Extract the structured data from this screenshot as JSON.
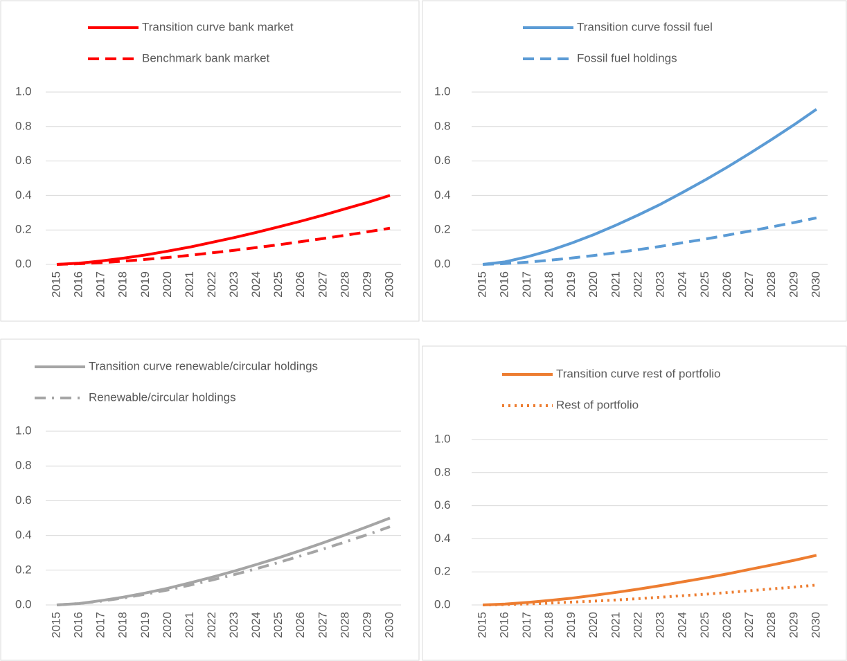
{
  "chart_data": [
    {
      "type": "line",
      "categories": [
        "2015",
        "2016",
        "2017",
        "2018",
        "2019",
        "2020",
        "2021",
        "2022",
        "2023",
        "2024",
        "2025",
        "2026",
        "2027",
        "2028",
        "2029",
        "2030"
      ],
      "series": [
        {
          "name": "Transition curve bank market",
          "color": "#ff0000",
          "style": "solid",
          "values": [
            0,
            0.007,
            0.02,
            0.036,
            0.055,
            0.077,
            0.101,
            0.128,
            0.156,
            0.186,
            0.218,
            0.251,
            0.286,
            0.323,
            0.36,
            0.4
          ]
        },
        {
          "name": "Benchmark bank market",
          "color": "#ff0000",
          "style": "dash",
          "values": [
            0,
            0.004,
            0.01,
            0.019,
            0.029,
            0.04,
            0.053,
            0.067,
            0.082,
            0.098,
            0.114,
            0.132,
            0.15,
            0.169,
            0.189,
            0.21
          ]
        }
      ],
      "ylim": [
        0,
        1
      ],
      "yticks": [
        {
          "value": 0,
          "label": "0.0"
        },
        {
          "value": 0.2,
          "label": "0.2"
        },
        {
          "value": 0.4,
          "label": "0.4"
        },
        {
          "value": 0.6,
          "label": "0.6"
        },
        {
          "value": 0.8,
          "label": "0.8"
        },
        {
          "value": 1,
          "label": "1.0"
        }
      ],
      "grid": true,
      "legend": "top"
    },
    {
      "type": "line",
      "categories": [
        "2015",
        "2016",
        "2017",
        "2018",
        "2019",
        "2020",
        "2021",
        "2022",
        "2023",
        "2024",
        "2025",
        "2026",
        "2027",
        "2028",
        "2029",
        "2030"
      ],
      "series": [
        {
          "name": "Transition curve fossil fuel",
          "color": "#5b9bd5",
          "style": "solid",
          "values": [
            0,
            0.015,
            0.044,
            0.08,
            0.124,
            0.173,
            0.228,
            0.287,
            0.35,
            0.419,
            0.49,
            0.565,
            0.644,
            0.726,
            0.811,
            0.9
          ]
        },
        {
          "name": "Fossil fuel holdings",
          "color": "#5b9bd5",
          "style": "dash",
          "values": [
            0,
            0.005,
            0.013,
            0.024,
            0.037,
            0.052,
            0.068,
            0.086,
            0.105,
            0.126,
            0.147,
            0.17,
            0.193,
            0.218,
            0.243,
            0.27
          ]
        }
      ],
      "ylim": [
        0,
        1
      ],
      "yticks": [
        {
          "value": 0,
          "label": "0.0"
        },
        {
          "value": 0.2,
          "label": "0.2"
        },
        {
          "value": 0.4,
          "label": "0.4"
        },
        {
          "value": 0.6,
          "label": "0.6"
        },
        {
          "value": 0.8,
          "label": "0.8"
        },
        {
          "value": 1,
          "label": "1.0"
        }
      ],
      "grid": true,
      "legend": "top"
    },
    {
      "type": "line",
      "categories": [
        "2015",
        "2016",
        "2017",
        "2018",
        "2019",
        "2020",
        "2021",
        "2022",
        "2023",
        "2024",
        "2025",
        "2026",
        "2027",
        "2028",
        "2029",
        "2030"
      ],
      "series": [
        {
          "name": "Transition curve renewable/circular holdings",
          "color": "#a5a5a5",
          "style": "solid",
          "values": [
            0,
            0.008,
            0.025,
            0.045,
            0.069,
            0.096,
            0.127,
            0.16,
            0.195,
            0.233,
            0.272,
            0.314,
            0.358,
            0.404,
            0.451,
            0.5
          ]
        },
        {
          "name": "Renewable/circular holdings",
          "color": "#a5a5a5",
          "style": "dashdot",
          "values": [
            0,
            0.008,
            0.022,
            0.04,
            0.062,
            0.086,
            0.114,
            0.144,
            0.175,
            0.209,
            0.245,
            0.283,
            0.322,
            0.363,
            0.405,
            0.45
          ]
        }
      ],
      "ylim": [
        0,
        1
      ],
      "yticks": [
        {
          "value": 0,
          "label": "0.0"
        },
        {
          "value": 0.2,
          "label": "0.2"
        },
        {
          "value": 0.4,
          "label": "0.4"
        },
        {
          "value": 0.6,
          "label": "0.6"
        },
        {
          "value": 0.8,
          "label": "0.8"
        },
        {
          "value": 1,
          "label": "1.0"
        }
      ],
      "grid": true,
      "legend": "top"
    },
    {
      "type": "line",
      "categories": [
        "2015",
        "2016",
        "2017",
        "2018",
        "2019",
        "2020",
        "2021",
        "2022",
        "2023",
        "2024",
        "2025",
        "2026",
        "2027",
        "2028",
        "2029",
        "2030"
      ],
      "series": [
        {
          "name": "Transition curve rest of portfolio",
          "color": "#ed7d31",
          "style": "solid",
          "values": [
            0,
            0.005,
            0.015,
            0.027,
            0.041,
            0.058,
            0.076,
            0.096,
            0.117,
            0.14,
            0.163,
            0.188,
            0.215,
            0.242,
            0.27,
            0.3
          ]
        },
        {
          "name": "Rest of portfolio",
          "color": "#ed7d31",
          "style": "dot",
          "values": [
            0,
            0.002,
            0.006,
            0.011,
            0.017,
            0.023,
            0.03,
            0.038,
            0.047,
            0.056,
            0.065,
            0.075,
            0.086,
            0.097,
            0.108,
            0.12
          ]
        }
      ],
      "ylim": [
        0,
        1
      ],
      "yticks": [
        {
          "value": 0,
          "label": "0.0"
        },
        {
          "value": 0.2,
          "label": "0.2"
        },
        {
          "value": 0.4,
          "label": "0.4"
        },
        {
          "value": 0.6,
          "label": "0.6"
        },
        {
          "value": 0.8,
          "label": "0.8"
        },
        {
          "value": 1,
          "label": "1.0"
        }
      ],
      "grid": true,
      "legend": "top"
    }
  ]
}
